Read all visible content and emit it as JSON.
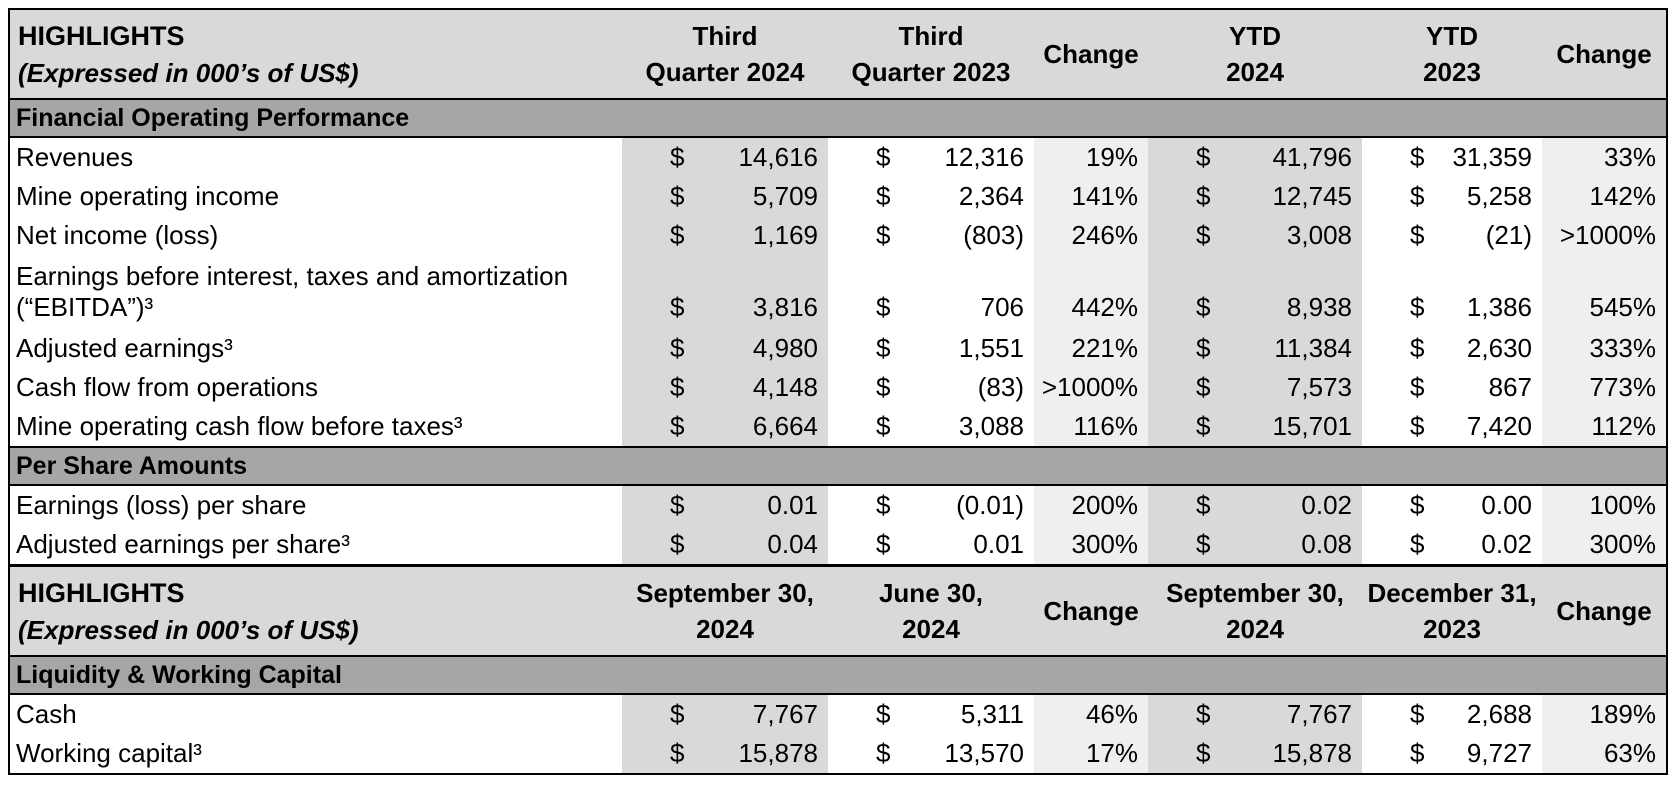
{
  "currency": "$",
  "colors": {
    "header_bg": "#d9d9d9",
    "section_bg": "#a6a6a6",
    "column_shade_dark": "#d9d9d9",
    "column_shade_light": "#f0eff0",
    "border": "#000000"
  },
  "t1": {
    "title": "HIGHLIGHTS",
    "subtitle": "(Expressed in 000’s of US$)",
    "h": [
      {
        "a": "Third",
        "b": "Quarter 2024"
      },
      {
        "a": "Third",
        "b": "Quarter 2023"
      },
      {
        "a": "Change",
        "b": ""
      },
      {
        "a": "YTD",
        "b": "2024"
      },
      {
        "a": "YTD",
        "b": "2023"
      },
      {
        "a": "Change",
        "b": ""
      }
    ],
    "sec1": "Financial Operating Performance",
    "rows1": [
      {
        "label": "Revenues",
        "c1": "14,616",
        "c2": "12,316",
        "c3": "19%",
        "c4": "41,796",
        "c5": "31,359",
        "c6": "33%"
      },
      {
        "label": "Mine operating income",
        "c1": "5,709",
        "c2": "2,364",
        "c3": "141%",
        "c4": "12,745",
        "c5": "5,258",
        "c6": "142%"
      },
      {
        "label": "Net income (loss)",
        "c1": "1,169",
        "c2": "(803)",
        "c3": "246%",
        "c4": "3,008",
        "c5": "(21)",
        "c6": ">1000%"
      },
      {
        "label": "Earnings before interest, taxes and amortization",
        "label2": "(“EBITDA”)³",
        "c1": "3,816",
        "c2": "706",
        "c3": "442%",
        "c4": "8,938",
        "c5": "1,386",
        "c6": "545%"
      },
      {
        "label": "Adjusted earnings³",
        "c1": "4,980",
        "c2": "1,551",
        "c3": "221%",
        "c4": "11,384",
        "c5": "2,630",
        "c6": "333%"
      },
      {
        "label": "Cash flow from operations",
        "c1": "4,148",
        "c2": "(83)",
        "c3": ">1000%",
        "c4": "7,573",
        "c5": "867",
        "c6": "773%"
      },
      {
        "label": "Mine operating cash flow before taxes³",
        "c1": "6,664",
        "c2": "3,088",
        "c3": "116%",
        "c4": "15,701",
        "c5": "7,420",
        "c6": "112%"
      }
    ],
    "sec2": "Per Share Amounts",
    "rows2": [
      {
        "label": "Earnings (loss) per share",
        "c1": "0.01",
        "c2": "(0.01)",
        "c3": "200%",
        "c4": "0.02",
        "c5": "0.00",
        "c6": "100%"
      },
      {
        "label": "Adjusted earnings per share³",
        "c1": "0.04",
        "c2": "0.01",
        "c3": "300%",
        "c4": "0.08",
        "c5": "0.02",
        "c6": "300%"
      }
    ]
  },
  "t2": {
    "title": "HIGHLIGHTS",
    "subtitle": "(Expressed in 000’s of US$)",
    "h": [
      {
        "a": "September 30,",
        "b": "2024"
      },
      {
        "a": "June 30,",
        "b": "2024"
      },
      {
        "a": "Change",
        "b": ""
      },
      {
        "a": "September 30,",
        "b": "2024"
      },
      {
        "a": "December 31,",
        "b": "2023"
      },
      {
        "a": "Change",
        "b": ""
      }
    ],
    "sec1": "Liquidity & Working Capital",
    "rows1": [
      {
        "label": "Cash",
        "c1": "7,767",
        "c2": "5,311",
        "c3": "46%",
        "c4": "7,767",
        "c5": "2,688",
        "c6": "189%"
      },
      {
        "label": "Working capital³",
        "c1": "15,878",
        "c2": "13,570",
        "c3": "17%",
        "c4": "15,878",
        "c5": "9,727",
        "c6": "63%"
      }
    ]
  }
}
